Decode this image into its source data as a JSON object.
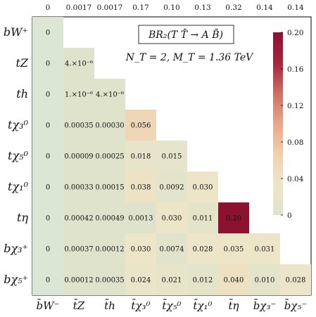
{
  "chart_data": {
    "type": "heatmap",
    "title": "BR₂(T T̄ → A B̄)",
    "subtitle": "N_T = 2, M_T = 1.36 TeV",
    "rows": [
      "bW⁺",
      "tZ",
      "th",
      "tχ₃⁰",
      "tχ₅⁰",
      "tχ₁⁰",
      "tη",
      "bχ₃⁺",
      "bχ₅⁺"
    ],
    "columns": [
      "b̄W⁻",
      "t̄Z",
      "t̄h",
      "t̄χ₃⁰",
      "t̄χ₅⁰",
      "t̄χ₁⁰",
      "t̄η",
      "b̄χ₃⁻",
      "b̄χ₅⁻"
    ],
    "column_totals": [
      "0",
      "0.0017",
      "0.0017",
      "0.17",
      "0.10",
      "0.13",
      "0.32",
      "0.14",
      "0.14"
    ],
    "values": [
      [
        0,
        null,
        null,
        null,
        null,
        null,
        null,
        null,
        null
      ],
      [
        0,
        4e-06,
        null,
        null,
        null,
        null,
        null,
        null,
        null
      ],
      [
        0,
        1e-06,
        4e-06,
        null,
        null,
        null,
        null,
        null,
        null
      ],
      [
        0,
        0.00035,
        0.0003,
        0.056,
        null,
        null,
        null,
        null,
        null
      ],
      [
        0,
        9e-05,
        0.00025,
        0.018,
        0.015,
        null,
        null,
        null,
        null
      ],
      [
        0,
        0.00033,
        0.00015,
        0.038,
        0.0092,
        0.03,
        null,
        null,
        null
      ],
      [
        0,
        0.00042,
        0.00049,
        0.0013,
        0.03,
        0.011,
        0.2,
        null,
        null
      ],
      [
        0,
        0.00037,
        0.00012,
        0.03,
        0.0074,
        0.028,
        0.035,
        0.031,
        null
      ],
      [
        0,
        0.00012,
        0.00035,
        0.024,
        0.021,
        0.012,
        0.04,
        0.01,
        0.028
      ]
    ],
    "labels": [
      [
        "0",
        null,
        null,
        null,
        null,
        null,
        null,
        null,
        null
      ],
      [
        "0",
        "4.×10⁻⁶",
        null,
        null,
        null,
        null,
        null,
        null,
        null
      ],
      [
        "0",
        "1.×10⁻⁶",
        "4.×10⁻⁶",
        null,
        null,
        null,
        null,
        null,
        null
      ],
      [
        "0",
        "0.00035",
        "0.00030",
        "0.056",
        null,
        null,
        null,
        null,
        null
      ],
      [
        "0",
        "0.00009",
        "0.00025",
        "0.018",
        "0.015",
        null,
        null,
        null,
        null
      ],
      [
        "0",
        "0.00033",
        "0.00015",
        "0.038",
        "0.0092",
        "0.030",
        null,
        null,
        null
      ],
      [
        "0",
        "0.00042",
        "0.00049",
        "0.0013",
        "0.030",
        "0.011",
        "0.20",
        null,
        null
      ],
      [
        "0",
        "0.00037",
        "0.00012",
        "0.030",
        "0.0074",
        "0.028",
        "0.035",
        "0.031",
        null
      ],
      [
        "0",
        "0.00012",
        "0.00035",
        "0.024",
        "0.021",
        "0.012",
        "0.040",
        "0.010",
        "0.028"
      ]
    ],
    "colorbar": {
      "min": 0,
      "max": 0.2,
      "ticks": [
        0,
        0.04,
        0.08,
        0.12,
        0.16,
        0.2
      ],
      "tick_labels": [
        "0",
        "0.04",
        "0.08",
        "0.12",
        "0.16",
        "0.20"
      ],
      "colors": [
        "#dfe3cc",
        "#eee5c8",
        "#f0d0ad",
        "#e7a889",
        "#cf6e63",
        "#a7243d",
        "#8c1230"
      ]
    },
    "grid": false
  }
}
